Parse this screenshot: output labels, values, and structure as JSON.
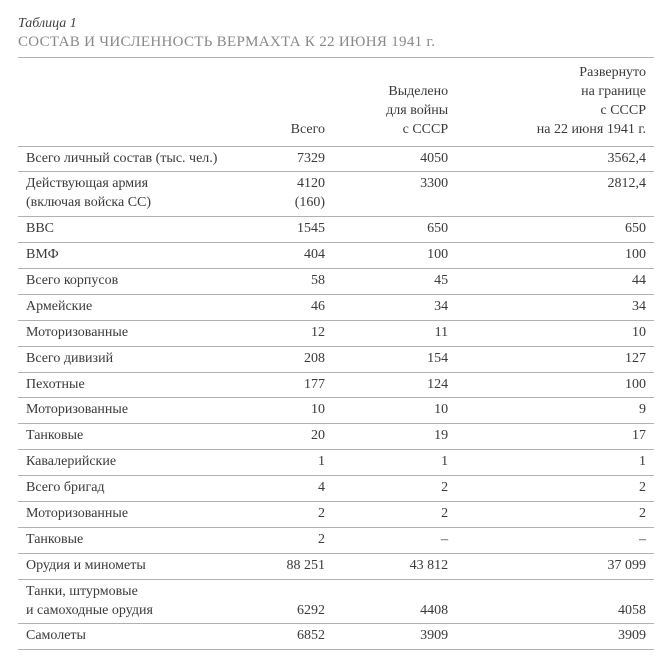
{
  "meta": {
    "table_label": "Таблица 1",
    "title": "СОСТАВ И ЧИСЛЕННОСТЬ ВЕРМАХТА К 22 ИЮНЯ 1941 г."
  },
  "headers": {
    "c0": "",
    "c1": "Всего",
    "c2_l1": "Выделено",
    "c2_l2": "для войны",
    "c2_l3": "с СССР",
    "c3_l1": "Развернуто",
    "c3_l2": "на границе",
    "c3_l3": "с СССР",
    "c3_l4": "на 22 июня 1941 г."
  },
  "rows": {
    "r0": {
      "label": "Всего личный состав (тыс. чел.)",
      "v1": "7329",
      "v2": "4050",
      "v3": "3562,4"
    },
    "r1a": {
      "label": "Действующая армия",
      "v1": "4120",
      "v2": "3300",
      "v3": "2812,4"
    },
    "r1b": {
      "label": "(включая войска СС)",
      "v1": "(160)",
      "v2": "",
      "v3": ""
    },
    "r2": {
      "label": "ВВС",
      "v1": "1545",
      "v2": "650",
      "v3": "650"
    },
    "r3": {
      "label": "ВМФ",
      "v1": "404",
      "v2": "100",
      "v3": "100"
    },
    "r4": {
      "label": "Всего корпусов",
      "v1": "58",
      "v2": "45",
      "v3": "44"
    },
    "r5": {
      "label": "Армейские",
      "v1": "46",
      "v2": "34",
      "v3": "34"
    },
    "r6": {
      "label": "Моторизованные",
      "v1": "12",
      "v2": "11",
      "v3": "10"
    },
    "r7": {
      "label": "Всего дивизий",
      "v1": "208",
      "v2": "154",
      "v3": "127"
    },
    "r8": {
      "label": "Пехотные",
      "v1": "177",
      "v2": "124",
      "v3": "100"
    },
    "r9": {
      "label": "Моторизованные",
      "v1": "10",
      "v2": "10",
      "v3": "9"
    },
    "r10": {
      "label": "Танковые",
      "v1": "20",
      "v2": "19",
      "v3": "17"
    },
    "r11": {
      "label": "Кавалерийские",
      "v1": "1",
      "v2": "1",
      "v3": "1"
    },
    "r12": {
      "label": "Всего бригад",
      "v1": "4",
      "v2": "2",
      "v3": "2"
    },
    "r13": {
      "label": "Моторизованные",
      "v1": "2",
      "v2": "2",
      "v3": "2"
    },
    "r14": {
      "label": "Танковые",
      "v1": "2",
      "v2": "–",
      "v3": "–"
    },
    "r15": {
      "label": "Орудия и минометы",
      "v1": "88 251",
      "v2": "43 812",
      "v3": "37 099"
    },
    "r16a": {
      "label": "Танки, штурмовые",
      "v1": "",
      "v2": "",
      "v3": ""
    },
    "r16b": {
      "label": "и самоходные орудия",
      "v1": "6292",
      "v2": "4408",
      "v3": "4058"
    },
    "r17": {
      "label": "Самолеты",
      "v1": "6852",
      "v2": "3909",
      "v3": "3909"
    }
  },
  "style": {
    "border_color": "#b0b0b0",
    "text_color": "#3a3a3a",
    "title_color": "#888888",
    "font_size_body": 14,
    "font_size_title": 15,
    "font_family": "Georgia, Times New Roman, serif"
  }
}
